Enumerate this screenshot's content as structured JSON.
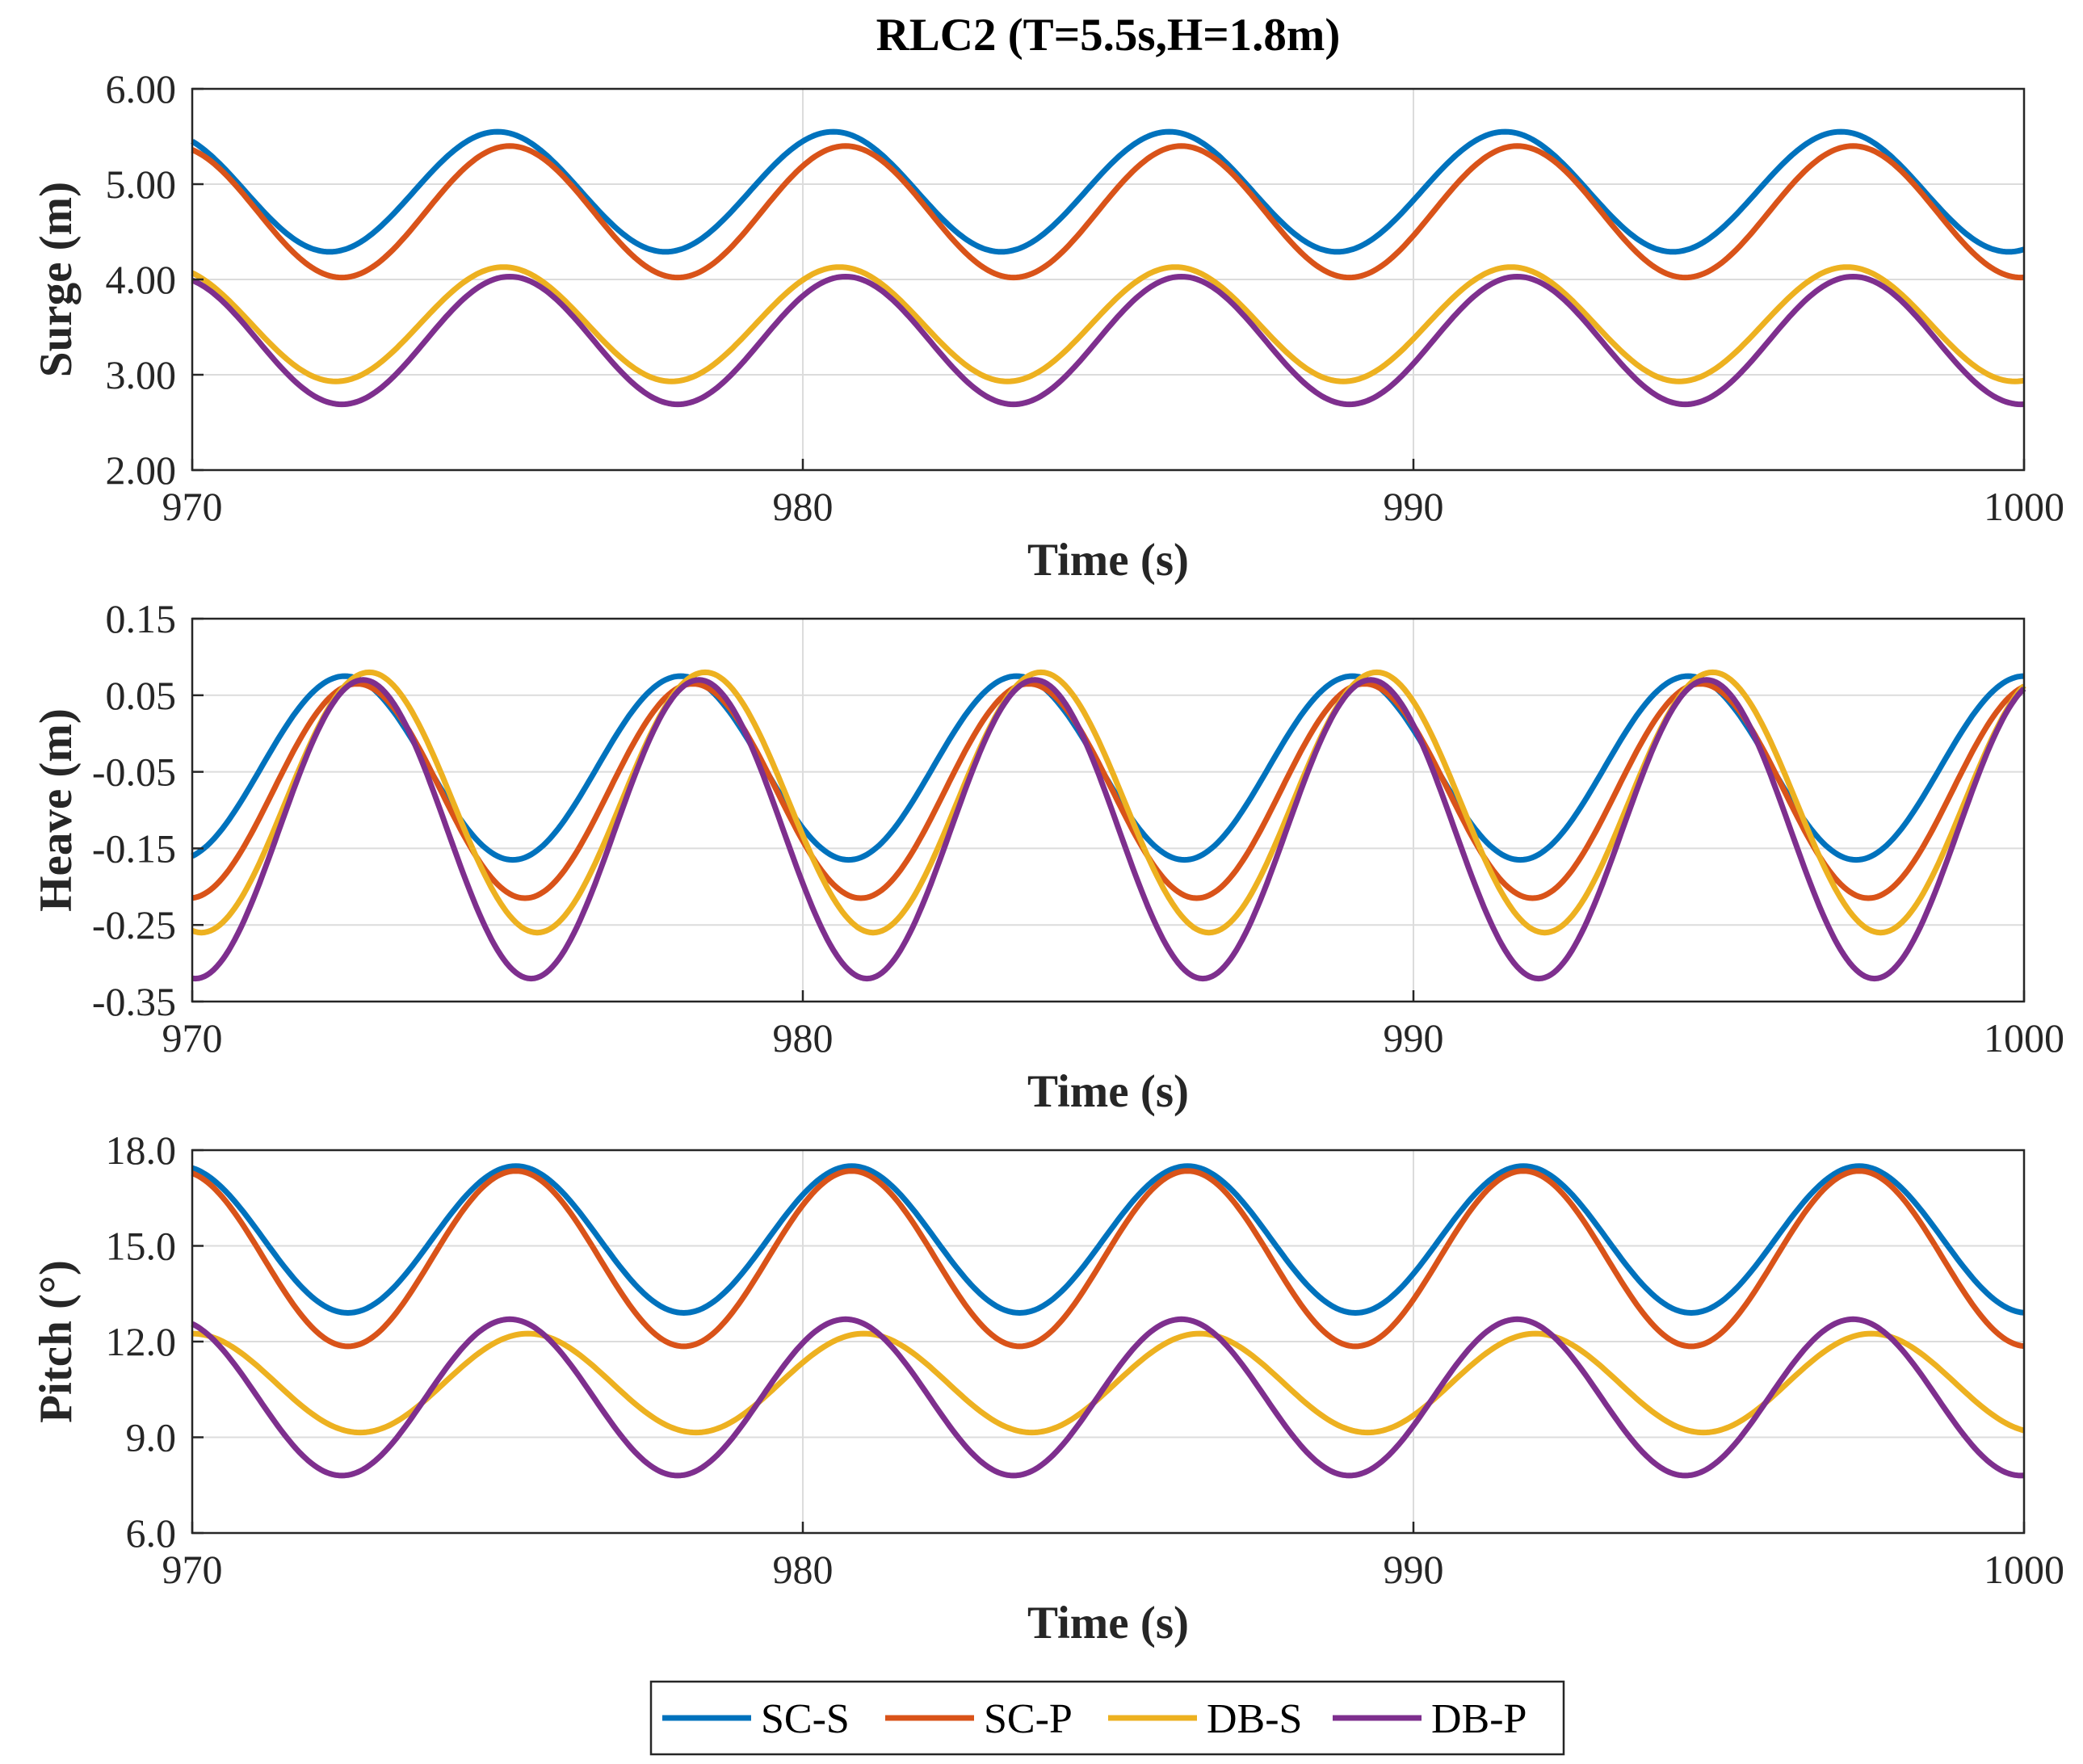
{
  "figure_title": "RLC2 (T=5.5s,H=1.8m)",
  "colors": {
    "SC-S": "#0072BD",
    "SC-P": "#D95319",
    "DB-S": "#EDB120",
    "DB-P": "#7E2F8E",
    "grid": "#dcdcdc",
    "axis": "#262626"
  },
  "chart_data": [
    {
      "type": "line",
      "title": "RLC2 (T=5.5s,H=1.8m)",
      "xlabel": "Time (s)",
      "ylabel": "Surge (m)",
      "xlim": [
        970,
        1000
      ],
      "ylim": [
        2.0,
        6.0
      ],
      "xticks": [
        970,
        980,
        990,
        1000
      ],
      "yticks": [
        2.0,
        3.0,
        4.0,
        5.0,
        6.0
      ],
      "ytick_labels": [
        "2.00",
        "3.00",
        "4.00",
        "5.00",
        "6.00"
      ],
      "grid": true,
      "period": 5.5,
      "series": [
        {
          "name": "SC-S",
          "mean": 4.92,
          "amplitude": 0.63,
          "peak_time": 975.0
        },
        {
          "name": "SC-P",
          "mean": 4.71,
          "amplitude": 0.69,
          "peak_time": 975.2
        },
        {
          "name": "DB-S",
          "mean": 3.53,
          "amplitude": 0.6,
          "peak_time": 975.1
        },
        {
          "name": "DB-P",
          "mean": 3.36,
          "amplitude": 0.67,
          "peak_time": 975.2
        }
      ]
    },
    {
      "type": "line",
      "title": "",
      "xlabel": "Time (s)",
      "ylabel": "Heave (m)",
      "xlim": [
        970,
        1000
      ],
      "ylim": [
        -0.35,
        0.15
      ],
      "xticks": [
        970,
        980,
        990,
        1000
      ],
      "yticks": [
        -0.35,
        -0.25,
        -0.15,
        -0.05,
        0.05,
        0.15
      ],
      "ytick_labels": [
        "-0.35",
        "-0.25",
        "-0.15",
        "-0.05",
        "0.05",
        "0.15"
      ],
      "grid": true,
      "period": 5.5,
      "series": [
        {
          "name": "SC-S",
          "mean": -0.045,
          "amplitude": 0.12,
          "peak_time": 972.5
        },
        {
          "name": "SC-P",
          "mean": -0.075,
          "amplitude": 0.14,
          "peak_time": 972.7
        },
        {
          "name": "DB-S",
          "mean": -0.09,
          "amplitude": 0.17,
          "peak_time": 972.9
        },
        {
          "name": "DB-P",
          "mean": -0.125,
          "amplitude": 0.195,
          "peak_time": 972.8
        }
      ]
    },
    {
      "type": "line",
      "title": "",
      "xlabel": "Time (s)",
      "ylabel": "Pitch (°)",
      "xlim": [
        970,
        1000
      ],
      "ylim": [
        6.0,
        18.0
      ],
      "xticks": [
        970,
        980,
        990,
        1000
      ],
      "yticks": [
        6.0,
        9.0,
        12.0,
        15.0,
        18.0
      ],
      "ytick_labels": [
        "6.0",
        "9.0",
        "12.0",
        "15.0",
        "18.0"
      ],
      "grid": true,
      "period": 5.5,
      "series": [
        {
          "name": "SC-S",
          "mean": 15.2,
          "amplitude": 2.3,
          "peak_time": 975.3
        },
        {
          "name": "SC-P",
          "mean": 14.6,
          "amplitude": 2.75,
          "peak_time": 975.3
        },
        {
          "name": "DB-S",
          "mean": 10.7,
          "amplitude": 1.55,
          "peak_time": 975.5
        },
        {
          "name": "DB-P",
          "mean": 10.25,
          "amplitude": 2.45,
          "peak_time": 975.2
        }
      ]
    }
  ],
  "legend": {
    "placement": "bottom-center",
    "entries": [
      "SC-S",
      "SC-P",
      "DB-S",
      "DB-P"
    ]
  }
}
